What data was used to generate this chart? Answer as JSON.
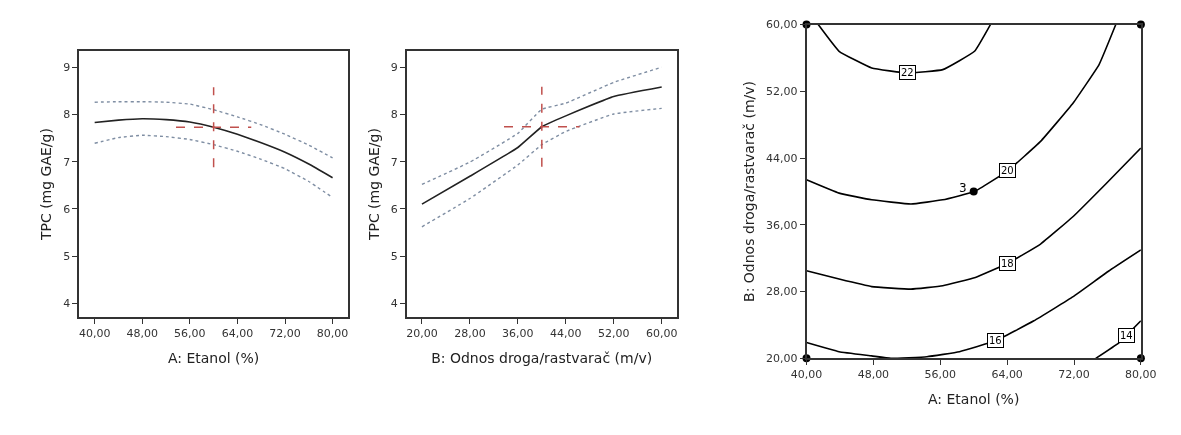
{
  "chart_data": [
    {
      "type": "line",
      "xlabel": "A: Etanol (%)",
      "ylabel": "TPC (mg GAE/g)",
      "x": [
        40,
        44,
        48,
        52,
        56,
        60,
        64,
        68,
        72,
        76,
        80
      ],
      "series": [
        {
          "color": "#222222",
          "line_style": "solid",
          "values": [
            7.83,
            7.88,
            7.91,
            7.89,
            7.84,
            7.73,
            7.58,
            7.4,
            7.2,
            6.95,
            6.66
          ]
        },
        {
          "color": "#7f8ea3",
          "line_style": "dotted",
          "values": [
            8.26,
            8.27,
            8.27,
            8.26,
            8.22,
            8.1,
            7.95,
            7.78,
            7.58,
            7.35,
            7.08
          ]
        },
        {
          "color": "#7f8ea3",
          "line_style": "dotted",
          "values": [
            7.39,
            7.51,
            7.56,
            7.53,
            7.47,
            7.36,
            7.22,
            7.05,
            6.85,
            6.58,
            6.24
          ]
        }
      ],
      "xlim": [
        37.4,
        82.6
      ],
      "ylim": [
        3.7,
        9.35
      ],
      "xticks": [
        {
          "value": 40,
          "label": "40,00"
        },
        {
          "value": 48,
          "label": "48,00"
        },
        {
          "value": 56,
          "label": "56,00"
        },
        {
          "value": 64,
          "label": "64,00"
        },
        {
          "value": 72,
          "label": "72,00"
        },
        {
          "value": 80,
          "label": "80,00"
        }
      ],
      "yticks": [
        4,
        5,
        6,
        7,
        8,
        9
      ],
      "ref_lines": [
        {
          "axis": "x",
          "value": 60,
          "color": "#c0504d",
          "line_style": "dashed"
        },
        {
          "axis": "y",
          "value": 7.73,
          "color": "#c0504d",
          "line_style": "dashed"
        }
      ]
    },
    {
      "type": "line",
      "xlabel": "B: Odnos droga/rastvarač (m/v)",
      "ylabel": "TPC (mg GAE/g)",
      "x": [
        20,
        28,
        36,
        40,
        44,
        52,
        60
      ],
      "series": [
        {
          "color": "#222222",
          "line_style": "solid",
          "values": [
            6.1,
            6.69,
            7.3,
            7.74,
            7.97,
            8.38,
            8.58
          ]
        },
        {
          "color": "#7f8ea3",
          "line_style": "dotted",
          "values": [
            6.52,
            6.99,
            7.6,
            8.11,
            8.24,
            8.68,
            9.0
          ]
        },
        {
          "color": "#7f8ea3",
          "line_style": "dotted",
          "values": [
            5.62,
            6.22,
            6.93,
            7.36,
            7.64,
            8.01,
            8.13
          ]
        }
      ],
      "xlim": [
        17.45,
        62.5
      ],
      "ylim": [
        3.7,
        9.35
      ],
      "xticks": [
        {
          "value": 20,
          "label": "20,00"
        },
        {
          "value": 28,
          "label": "28,00"
        },
        {
          "value": 36,
          "label": "36,00"
        },
        {
          "value": 44,
          "label": "44,00"
        },
        {
          "value": 52,
          "label": "52,00"
        },
        {
          "value": 60,
          "label": "60,00"
        }
      ],
      "yticks": [
        4,
        5,
        6,
        7,
        8,
        9
      ],
      "ref_lines": [
        {
          "axis": "x",
          "value": 40,
          "color": "#c0504d",
          "line_style": "dashed"
        },
        {
          "axis": "y",
          "value": 7.74,
          "color": "#c0504d",
          "line_style": "dashed"
        }
      ]
    },
    {
      "type": "line",
      "xlabel": "A: Etanol (%)",
      "ylabel": "B: Odnos droga/rastvarač (m/v)",
      "series": [
        {
          "color": "#000000",
          "x": [
            41.4,
            43.9,
            47.8,
            52.1,
            56.3,
            60.1,
            62.0
          ],
          "values": [
            60,
            56.8,
            54.8,
            54.2,
            54.6,
            56.8,
            60
          ]
        },
        {
          "color": "#000000",
          "x": [
            40,
            43.9,
            47.8,
            52.5,
            56.3,
            60.1,
            64.1,
            68,
            71.9,
            75,
            77
          ],
          "values": [
            41.4,
            39.8,
            39.0,
            38.5,
            39.0,
            40.0,
            42.5,
            46.0,
            50.6,
            55.2,
            60
          ]
        },
        {
          "color": "#000000",
          "x": [
            40,
            43.9,
            47.8,
            52.5,
            56.3,
            60.2,
            64.1,
            68,
            71.9,
            75.8,
            80
          ],
          "values": [
            30.5,
            29.5,
            28.6,
            28.3,
            28.7,
            29.7,
            31.4,
            33.7,
            37.0,
            40.9,
            45.2
          ]
        },
        {
          "color": "#000000",
          "x": [
            40,
            43.9,
            47.8,
            50.1,
            54.4,
            58.3,
            62.6,
            67.2,
            71.9,
            76.2,
            80
          ],
          "values": [
            21.9,
            20.8,
            20.3,
            20.0,
            20.2,
            20.8,
            22.1,
            24.5,
            27.4,
            30.5,
            33.0
          ]
        },
        {
          "color": "#000000",
          "x": [
            74.6,
            77.4,
            80
          ],
          "values": [
            20,
            21.9,
            24.5
          ]
        },
        {
          "type": "scatter",
          "color": "#000000",
          "marker": "circle",
          "x": [
            40,
            40,
            80,
            80,
            60
          ],
          "values": [
            20,
            60,
            20,
            60,
            40
          ]
        }
      ],
      "annotations": [
        {
          "text": "22",
          "x": 52.1,
          "y": 54.2
        },
        {
          "text": "20",
          "x": 64.1,
          "y": 42.5
        },
        {
          "text": "18",
          "x": 64.1,
          "y": 31.4
        },
        {
          "text": "16",
          "x": 62.6,
          "y": 22.1
        },
        {
          "text": "14",
          "x": 78.3,
          "y": 22.7
        },
        {
          "text": "3",
          "x": 60,
          "y": 40
        }
      ],
      "xlim": [
        40,
        80
      ],
      "ylim": [
        20,
        60
      ],
      "xticks": [
        {
          "value": 40,
          "label": "40,00"
        },
        {
          "value": 48,
          "label": "48,00"
        },
        {
          "value": 56,
          "label": "56,00"
        },
        {
          "value": 64,
          "label": "64,00"
        },
        {
          "value": 72,
          "label": "72,00"
        },
        {
          "value": 80,
          "label": "80,00"
        }
      ],
      "yticks": [
        {
          "value": 20,
          "label": "20,00"
        },
        {
          "value": 28,
          "label": "28,00"
        },
        {
          "value": 36,
          "label": "36,00"
        },
        {
          "value": 44,
          "label": "44,00"
        },
        {
          "value": 52,
          "label": "52,00"
        },
        {
          "value": 60,
          "label": "60,00"
        }
      ]
    }
  ]
}
